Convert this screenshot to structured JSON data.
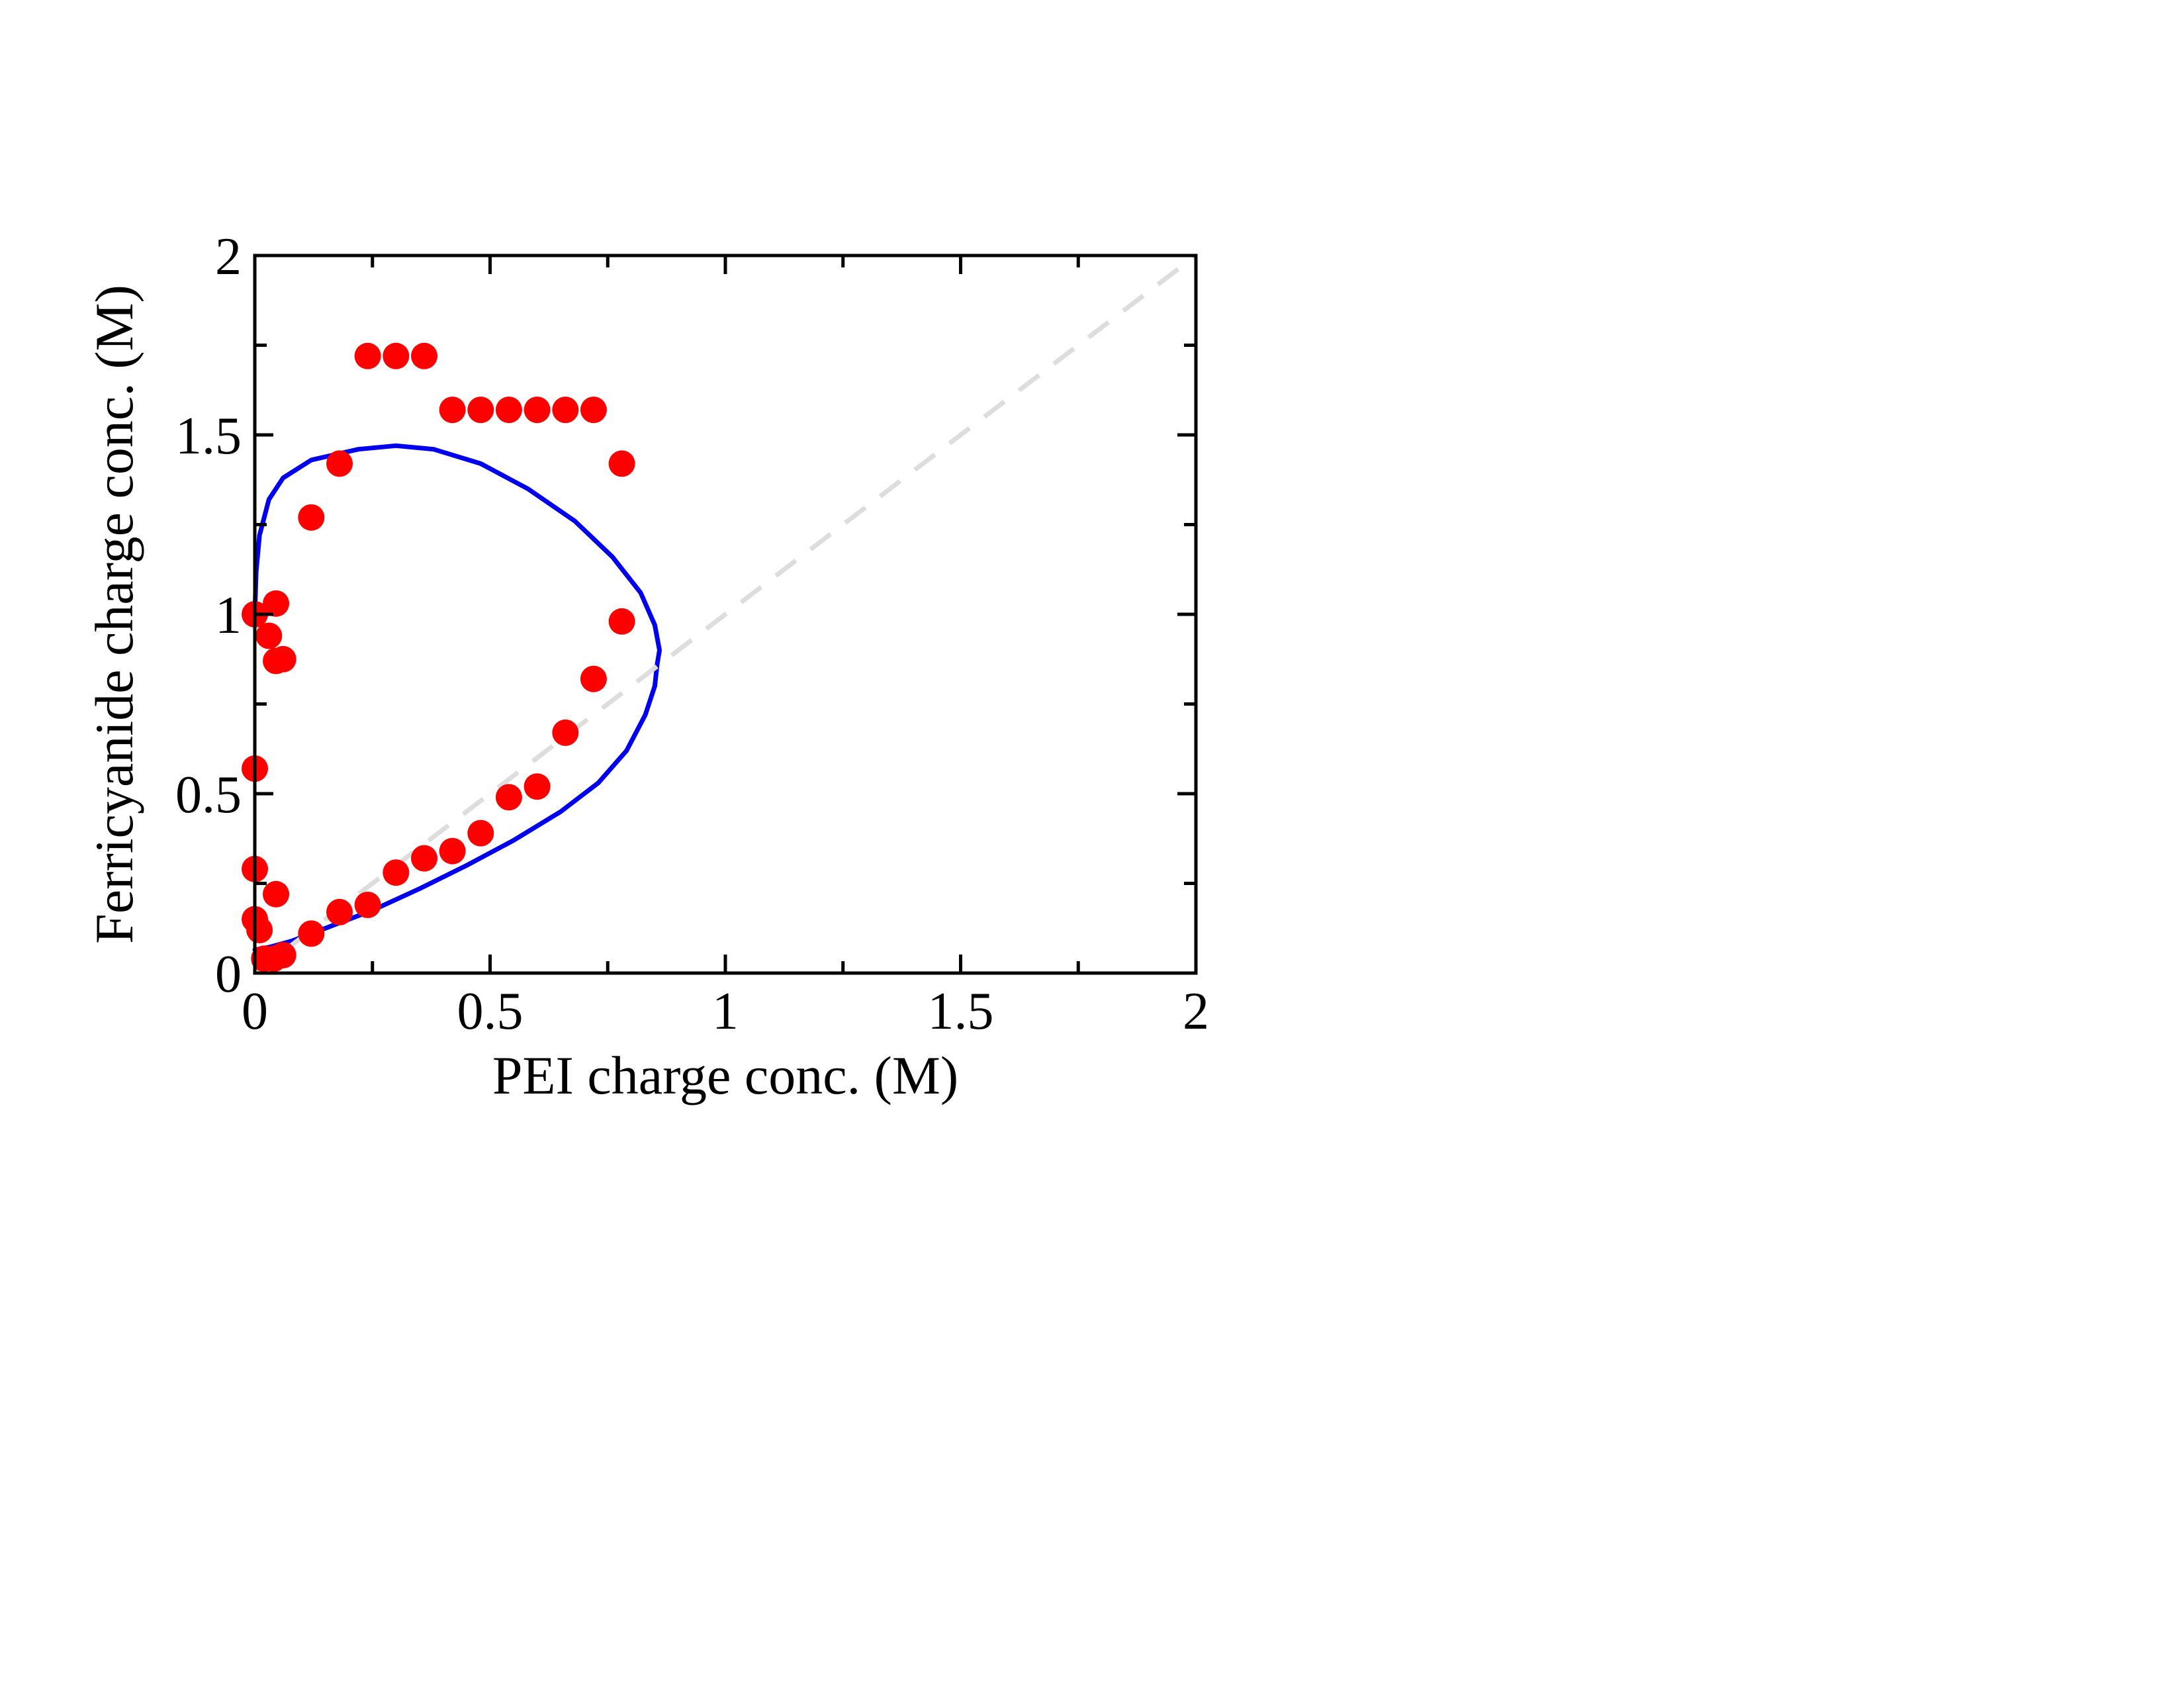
{
  "chart_data": {
    "type": "scatter",
    "xlabel": "PEI charge conc. (M)",
    "ylabel": "Ferricyanide charge conc. (M)",
    "xlim": [
      0,
      2
    ],
    "ylim": [
      0,
      2
    ],
    "x_ticks": [
      0,
      0.5,
      1,
      1.5,
      2
    ],
    "y_ticks": [
      0,
      0.5,
      1,
      1.5,
      2
    ],
    "x_tick_labels": [
      "0",
      "0.5",
      "1",
      "1.5",
      "2"
    ],
    "y_tick_labels": [
      "0",
      "0.5",
      "1",
      "1.5",
      "2"
    ],
    "x_minor_ticks": [
      0.25,
      0.75,
      1.25,
      1.75
    ],
    "y_minor_ticks": [
      0.25,
      0.75,
      1.25,
      1.75
    ],
    "grid": false,
    "series": [
      {
        "kind": "scatter",
        "color": "#ff0000",
        "points": [
          [
            0.0,
            1.0
          ],
          [
            0.0,
            0.57
          ],
          [
            0.0,
            0.29
          ],
          [
            0.0,
            0.15
          ],
          [
            0.01,
            0.12
          ],
          [
            0.03,
            0.94
          ],
          [
            0.045,
            1.03
          ],
          [
            0.045,
            0.87
          ],
          [
            0.06,
            0.875
          ],
          [
            0.045,
            0.22
          ],
          [
            0.02,
            0.04
          ],
          [
            0.04,
            0.04
          ],
          [
            0.06,
            0.05
          ],
          [
            0.12,
            0.11
          ],
          [
            0.18,
            0.17
          ],
          [
            0.24,
            0.19
          ],
          [
            0.3,
            0.28
          ],
          [
            0.36,
            0.32
          ],
          [
            0.42,
            0.34
          ],
          [
            0.48,
            0.39
          ],
          [
            0.54,
            0.49
          ],
          [
            0.6,
            0.52
          ],
          [
            0.66,
            0.67
          ],
          [
            0.72,
            0.82
          ],
          [
            0.78,
            0.98
          ],
          [
            0.12,
            1.27
          ],
          [
            0.18,
            1.42
          ],
          [
            0.24,
            1.72
          ],
          [
            0.3,
            1.72
          ],
          [
            0.36,
            1.72
          ],
          [
            0.42,
            1.57
          ],
          [
            0.48,
            1.57
          ],
          [
            0.54,
            1.57
          ],
          [
            0.6,
            1.57
          ],
          [
            0.66,
            1.57
          ],
          [
            0.72,
            1.57
          ],
          [
            0.78,
            1.42
          ]
        ]
      },
      {
        "kind": "line",
        "color": "#0000ee",
        "points": [
          [
            0.855,
            0.86
          ],
          [
            0.85,
            0.8
          ],
          [
            0.83,
            0.72
          ],
          [
            0.79,
            0.62
          ],
          [
            0.73,
            0.53
          ],
          [
            0.65,
            0.45
          ],
          [
            0.55,
            0.37
          ],
          [
            0.45,
            0.3
          ],
          [
            0.35,
            0.235
          ],
          [
            0.25,
            0.175
          ],
          [
            0.15,
            0.125
          ],
          [
            0.08,
            0.09
          ],
          [
            0.03,
            0.072
          ],
          [
            0.0,
            0.065
          ]
        ]
      },
      {
        "kind": "line",
        "color": "#0000ee",
        "points": [
          [
            0.855,
            0.86
          ],
          [
            0.86,
            0.9
          ],
          [
            0.85,
            0.97
          ],
          [
            0.82,
            1.06
          ],
          [
            0.76,
            1.16
          ],
          [
            0.68,
            1.26
          ],
          [
            0.58,
            1.35
          ],
          [
            0.48,
            1.42
          ],
          [
            0.38,
            1.46
          ],
          [
            0.3,
            1.47
          ],
          [
            0.22,
            1.46
          ],
          [
            0.12,
            1.43
          ],
          [
            0.06,
            1.38
          ],
          [
            0.03,
            1.32
          ],
          [
            0.01,
            1.22
          ],
          [
            0.003,
            1.12
          ],
          [
            0.0,
            1.0
          ]
        ]
      },
      {
        "kind": "dashed-line",
        "color": "#dddddd",
        "points": [
          [
            0.0,
            0.0
          ],
          [
            2.0,
            2.0
          ]
        ]
      }
    ]
  }
}
